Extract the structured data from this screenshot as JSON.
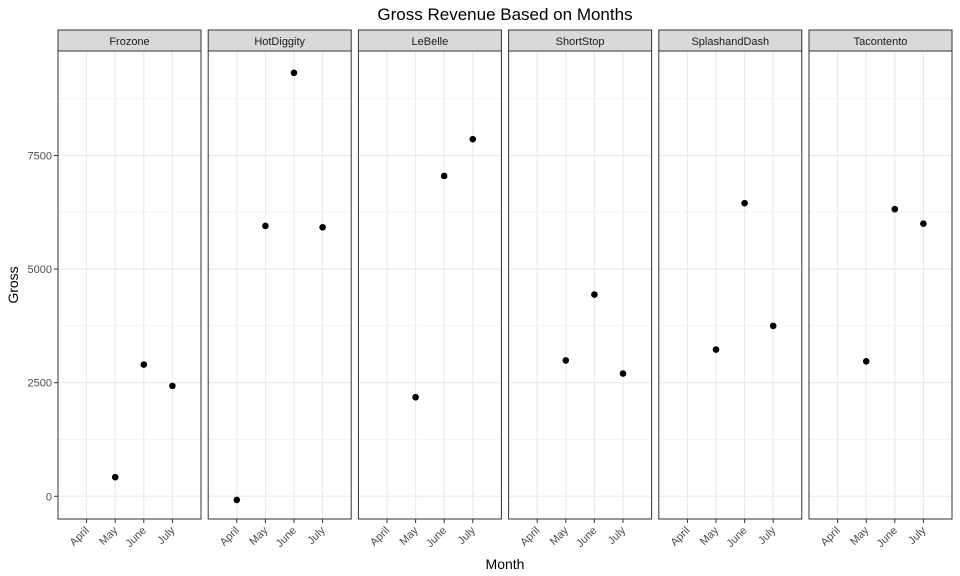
{
  "chart_data": {
    "type": "scatter",
    "title": "Gross Revenue Based on Months",
    "xlabel": "Month",
    "ylabel": "Gross",
    "categories": [
      "April",
      "May",
      "June",
      "July"
    ],
    "yticks": [
      0,
      2500,
      5000,
      7500
    ],
    "ylim": [
      -500,
      9800
    ],
    "grid": true,
    "facets": [
      {
        "name": "Frozone",
        "values": [
          null,
          420,
          2900,
          2430
        ]
      },
      {
        "name": "HotDiggity",
        "values": [
          -80,
          5950,
          9320,
          5920
        ]
      },
      {
        "name": "LeBelle",
        "values": [
          null,
          2180,
          7050,
          7860
        ]
      },
      {
        "name": "ShortStop",
        "values": [
          null,
          2990,
          4440,
          2700
        ]
      },
      {
        "name": "SplashandDash",
        "values": [
          null,
          3230,
          6450,
          3750
        ]
      },
      {
        "name": "Tacontento",
        "values": [
          null,
          2970,
          6320,
          6000
        ]
      }
    ],
    "point_color": "#000000"
  }
}
